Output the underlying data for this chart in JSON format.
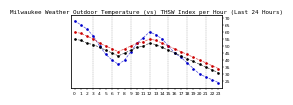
{
  "title": "Milwaukee Weather Outdoor Temperature (vs) THSW Index per Hour (Last 24 Hours)",
  "ylim": [
    20,
    72
  ],
  "yticks_right": [
    25,
    30,
    35,
    40,
    45,
    50,
    55,
    60,
    65,
    70
  ],
  "hours": [
    0,
    1,
    2,
    3,
    4,
    5,
    6,
    7,
    8,
    9,
    10,
    11,
    12,
    13,
    14,
    15,
    16,
    17,
    18,
    19,
    20,
    21,
    22,
    23
  ],
  "temp": [
    60,
    59,
    57,
    55,
    52,
    50,
    48,
    46,
    48,
    50,
    52,
    53,
    55,
    54,
    52,
    50,
    48,
    46,
    44,
    42,
    40,
    38,
    36,
    34
  ],
  "thsw": [
    68,
    65,
    62,
    57,
    50,
    44,
    40,
    37,
    40,
    46,
    52,
    56,
    60,
    58,
    55,
    50,
    45,
    42,
    38,
    34,
    30,
    28,
    26,
    24
  ],
  "dewpoint": [
    55,
    54,
    52,
    51,
    49,
    47,
    45,
    43,
    45,
    47,
    49,
    50,
    52,
    51,
    49,
    47,
    45,
    43,
    41,
    39,
    37,
    35,
    33,
    31
  ],
  "temp_color": "#cc0000",
  "thsw_color": "#0000cc",
  "dew_color": "#000000",
  "bg_color": "#ffffff",
  "grid_color": "#888888",
  "title_fontsize": 4.2,
  "tick_fontsize": 3.2,
  "line_markersize": 1.8,
  "line_lw": 0.5,
  "vgrid_x": [
    3,
    6,
    9,
    12,
    15,
    18,
    21
  ]
}
